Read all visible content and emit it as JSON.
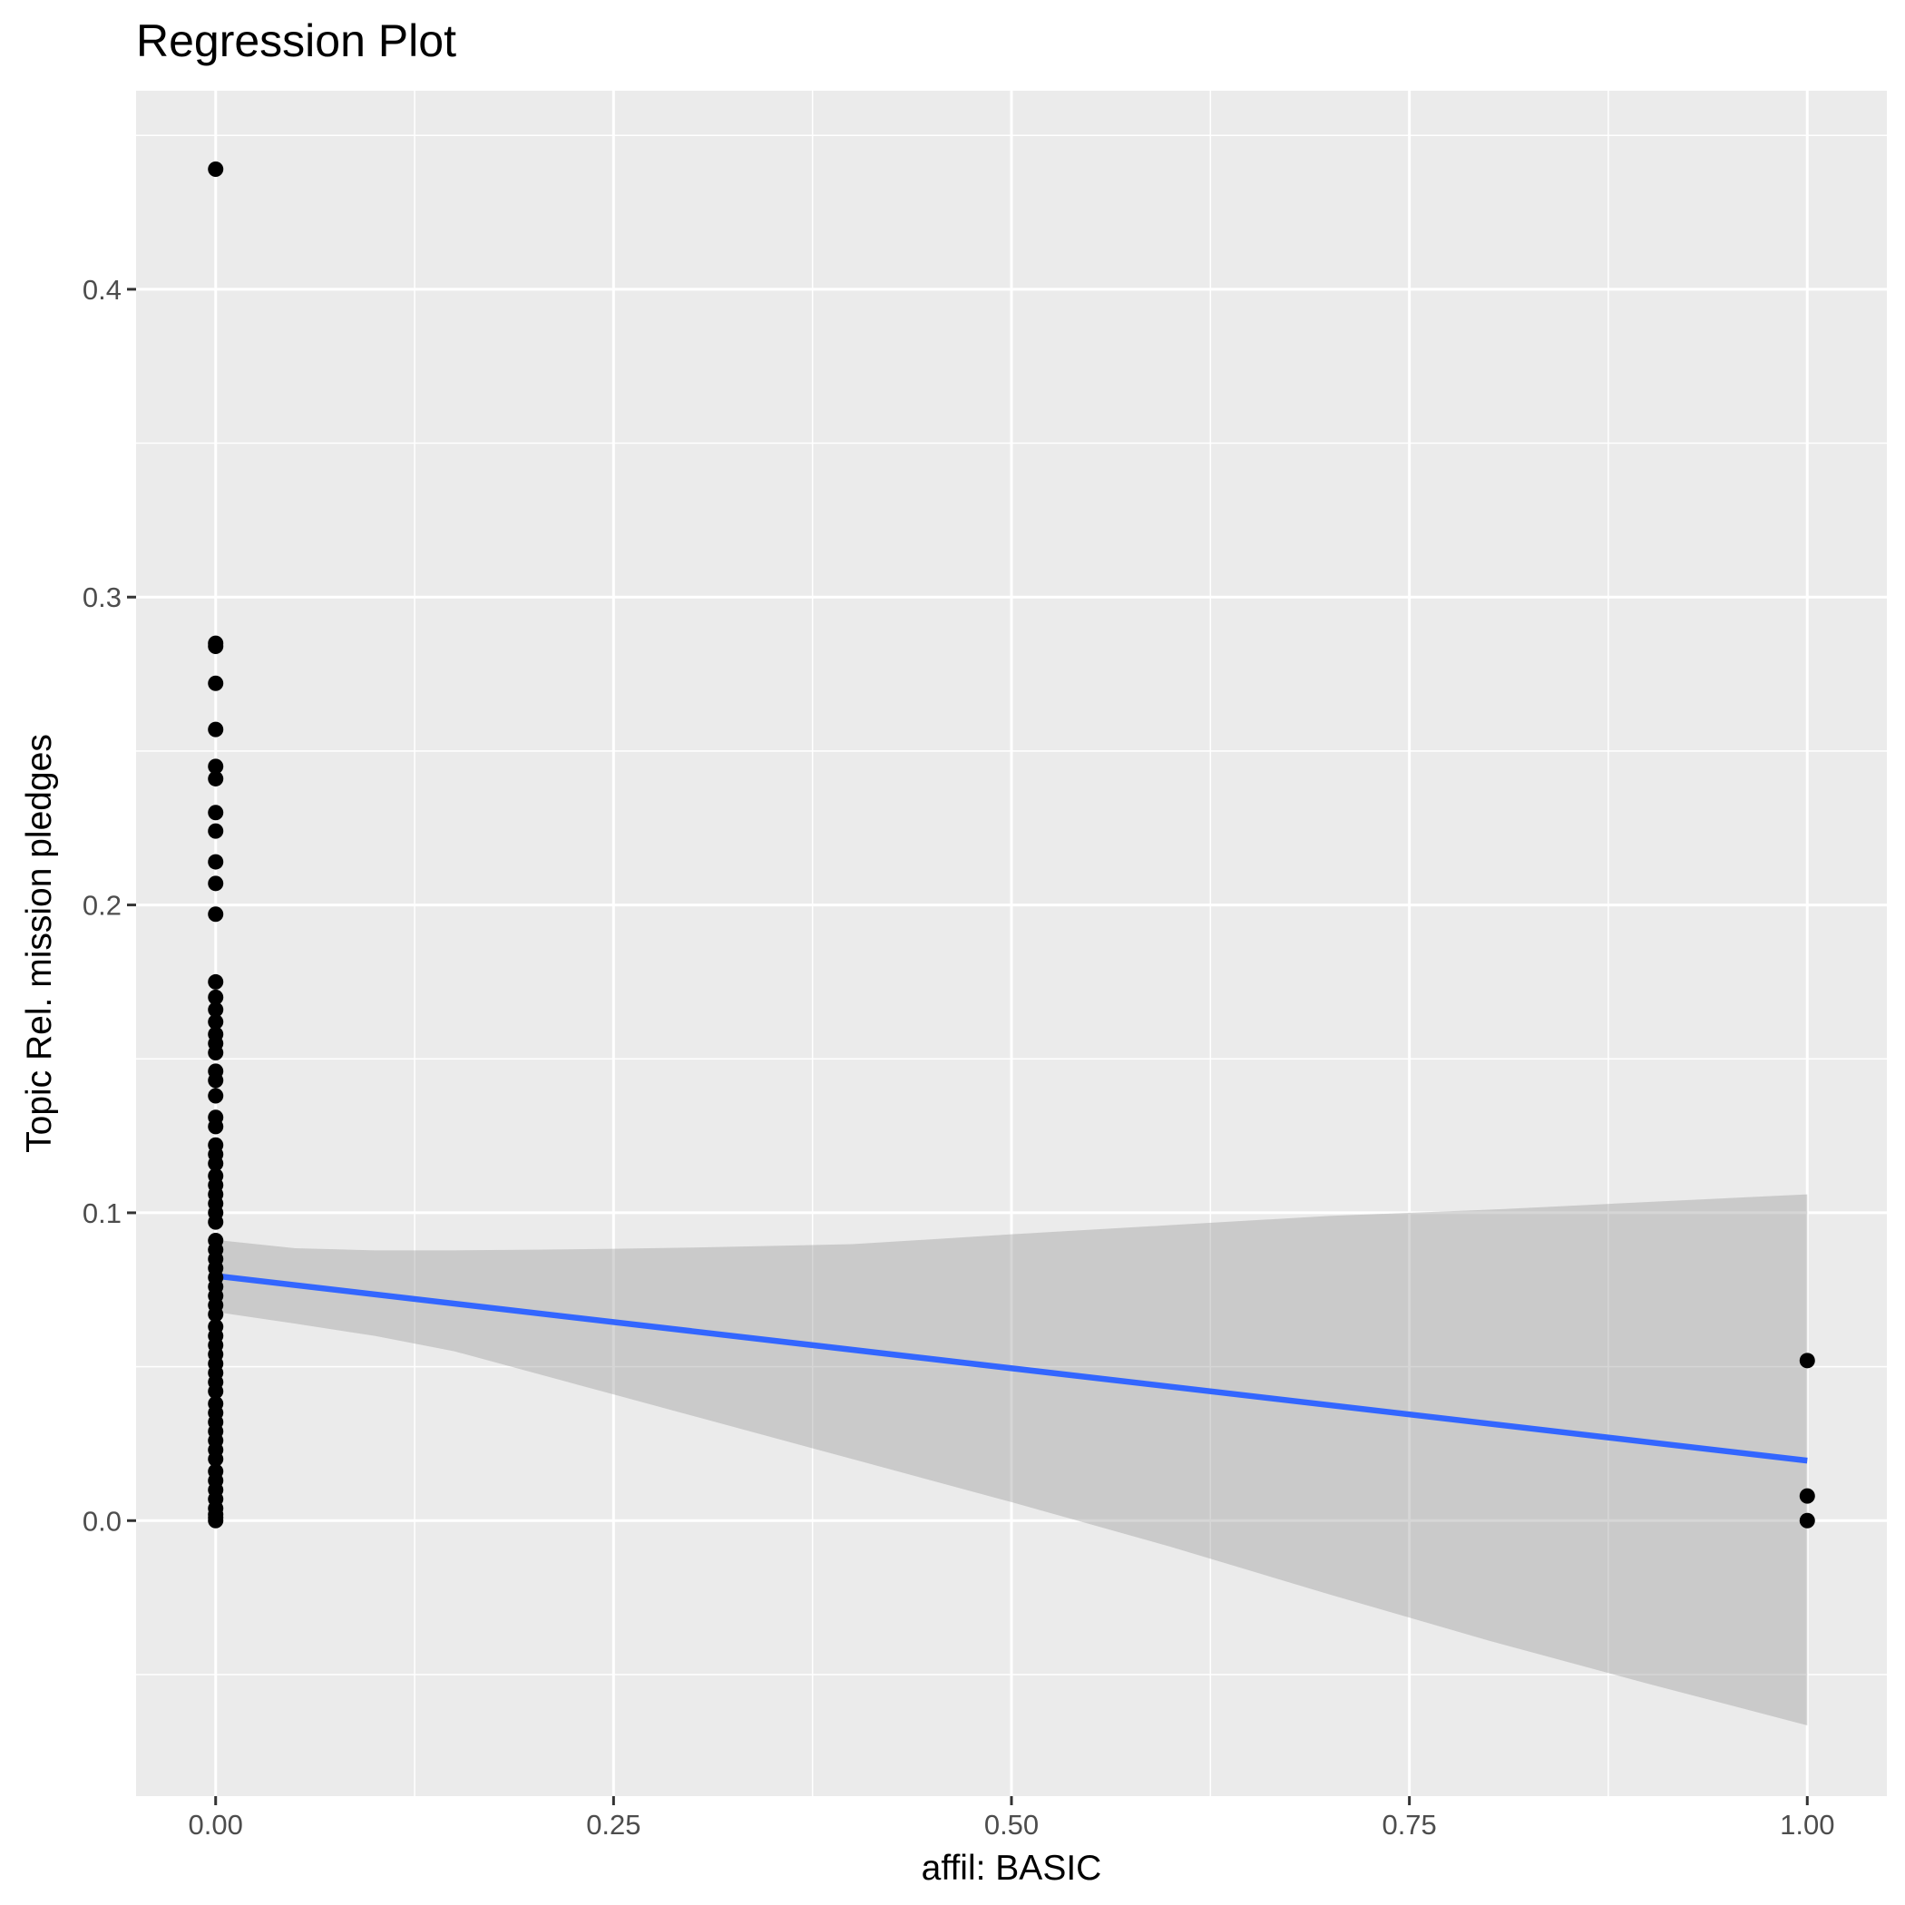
{
  "chart_data": {
    "type": "scatter",
    "title": "Regression Plot",
    "xlabel": "affil: BASIC",
    "ylabel": "Topic Rel. mission pledges",
    "xlim": [
      -0.05,
      1.05
    ],
    "ylim": [
      -0.0895,
      0.4645
    ],
    "x_ticks": [
      0.0,
      0.25,
      0.5,
      0.75,
      1.0
    ],
    "x_tick_labels": [
      "0.00",
      "0.25",
      "0.50",
      "0.75",
      "1.00"
    ],
    "y_ticks": [
      0.0,
      0.1,
      0.2,
      0.3,
      0.4
    ],
    "y_tick_labels": [
      "0.0",
      "0.1",
      "0.2",
      "0.3",
      "0.4"
    ],
    "grid": true,
    "legend": "none",
    "colors": {
      "panel": "#ebebeb",
      "grid": "#ffffff",
      "points": "#000000",
      "fit_line": "#3366ff",
      "confidence_band": "#999999"
    },
    "series": [
      {
        "points": [
          [
            0,
            0.439
          ],
          [
            0,
            0.285
          ],
          [
            0,
            0.284
          ],
          [
            0,
            0.272
          ],
          [
            0,
            0.257
          ],
          [
            0,
            0.245
          ],
          [
            0,
            0.241
          ],
          [
            0,
            0.23
          ],
          [
            0,
            0.224
          ],
          [
            0,
            0.214
          ],
          [
            0,
            0.207
          ],
          [
            0,
            0.197
          ],
          [
            0,
            0.175
          ],
          [
            0,
            0.17
          ],
          [
            0,
            0.166
          ],
          [
            0,
            0.162
          ],
          [
            0,
            0.158
          ],
          [
            0,
            0.155
          ],
          [
            0,
            0.152
          ],
          [
            0,
            0.146
          ],
          [
            0,
            0.143
          ],
          [
            0,
            0.138
          ],
          [
            0,
            0.131
          ],
          [
            0,
            0.128
          ],
          [
            0,
            0.122
          ],
          [
            0,
            0.119
          ],
          [
            0,
            0.116
          ],
          [
            0,
            0.112
          ],
          [
            0,
            0.109
          ],
          [
            0,
            0.106
          ],
          [
            0,
            0.103
          ],
          [
            0,
            0.1
          ],
          [
            0,
            0.097
          ],
          [
            0,
            0.091
          ],
          [
            0,
            0.088
          ],
          [
            0,
            0.085
          ],
          [
            0,
            0.082
          ],
          [
            0,
            0.079
          ],
          [
            0,
            0.076
          ],
          [
            0,
            0.073
          ],
          [
            0,
            0.07
          ],
          [
            0,
            0.067
          ],
          [
            0,
            0.063
          ],
          [
            0,
            0.06
          ],
          [
            0,
            0.057
          ],
          [
            0,
            0.054
          ],
          [
            0,
            0.051
          ],
          [
            0,
            0.048
          ],
          [
            0,
            0.045
          ],
          [
            0,
            0.042
          ],
          [
            0,
            0.038
          ],
          [
            0,
            0.035
          ],
          [
            0,
            0.032
          ],
          [
            0,
            0.029
          ],
          [
            0,
            0.026
          ],
          [
            0,
            0.023
          ],
          [
            0,
            0.02
          ],
          [
            0,
            0.016
          ],
          [
            0,
            0.013
          ],
          [
            0,
            0.01
          ],
          [
            0,
            0.007
          ],
          [
            0,
            0.004
          ],
          [
            0,
            0.002
          ],
          [
            0,
            0.001
          ],
          [
            0,
            0.0
          ],
          [
            1,
            0.052
          ],
          [
            1,
            0.008
          ],
          [
            1,
            0.0
          ]
        ]
      }
    ],
    "regression": {
      "x": [
        0,
        1
      ],
      "y": [
        0.0795,
        0.0195
      ]
    },
    "confidence_band": {
      "x": [
        0,
        0.05,
        0.1,
        0.15,
        0.2,
        0.25,
        0.3,
        0.4,
        0.5,
        0.6,
        0.7,
        0.8,
        0.9,
        1.0
      ],
      "upper": [
        0.0912,
        0.0885,
        0.0878,
        0.0878,
        0.088,
        0.0883,
        0.0887,
        0.0898,
        0.093,
        0.096,
        0.099,
        0.101,
        0.1035,
        0.106
      ],
      "lower": [
        0.0678,
        0.064,
        0.06,
        0.055,
        0.048,
        0.041,
        0.034,
        0.02,
        0.006,
        -0.0085,
        -0.024,
        -0.039,
        -0.053,
        -0.0665
      ]
    }
  }
}
